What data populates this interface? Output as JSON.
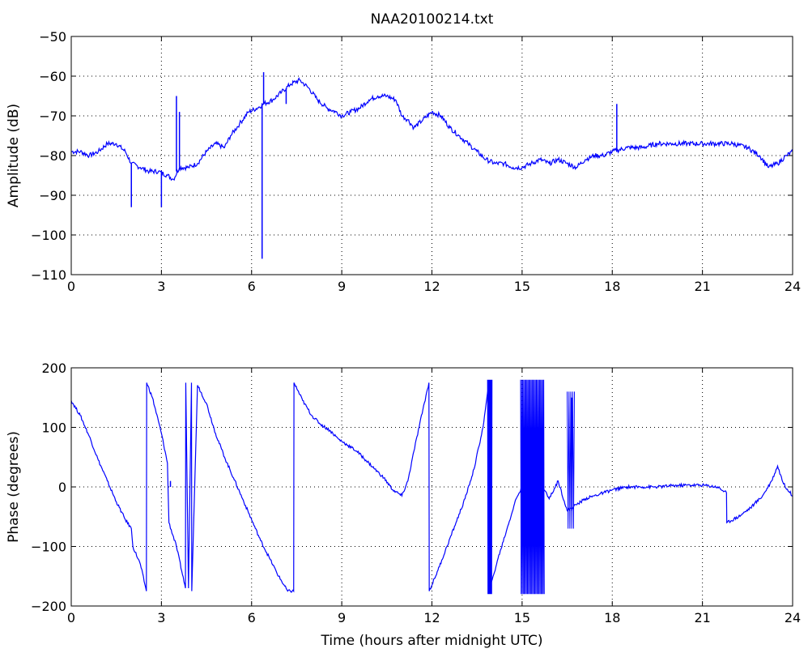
{
  "chart_data": [
    {
      "type": "line",
      "title": "NAA20100214.txt",
      "xlabel": "",
      "ylabel": "Amplitude (dB)",
      "xlim": [
        0,
        24
      ],
      "ylim": [
        -110,
        -50
      ],
      "xticks": [
        0,
        3,
        6,
        9,
        12,
        15,
        18,
        21,
        24
      ],
      "yticks": [
        -110,
        -100,
        -90,
        -80,
        -70,
        -60,
        -50
      ],
      "grid": true,
      "color": "#0000ff",
      "series": [
        {
          "x": [
            0,
            0.3,
            0.6,
            0.9,
            1.2,
            1.5,
            1.8,
            2.0,
            2.3,
            2.6,
            2.9,
            3.2,
            3.4,
            3.6,
            3.9,
            4.2,
            4.5,
            4.8,
            5.1,
            5.3,
            5.6,
            5.9,
            6.2,
            6.4,
            6.7,
            7.0,
            7.3,
            7.6,
            7.9,
            8.2,
            8.5,
            8.8,
            9.0,
            9.3,
            9.6,
            9.9,
            10.2,
            10.5,
            10.8,
            11.0,
            11.2,
            11.4,
            11.7,
            12.0,
            12.3,
            12.6,
            12.9,
            13.2,
            13.5,
            13.8,
            14.1,
            14.4,
            14.7,
            15.0,
            15.3,
            15.6,
            15.9,
            16.2,
            16.5,
            16.8,
            17.1,
            17.4,
            17.7,
            18.0,
            18.5,
            19.0,
            19.5,
            20.0,
            20.5,
            21.0,
            21.5,
            22.0,
            22.5,
            22.9,
            23.2,
            23.5,
            23.8,
            24.0
          ],
          "y": [
            -79,
            -79,
            -80,
            -79,
            -77,
            -77,
            -79,
            -82,
            -83,
            -84,
            -84,
            -85,
            -86,
            -83,
            -83,
            -82,
            -79,
            -77,
            -78,
            -75,
            -72,
            -69,
            -68,
            -67,
            -66,
            -64,
            -62,
            -61,
            -63,
            -66,
            -68,
            -69,
            -70,
            -69,
            -68,
            -66,
            -65,
            -65,
            -66,
            -70,
            -71,
            -73,
            -71,
            -69,
            -70,
            -73,
            -75,
            -77,
            -79,
            -81,
            -82,
            -82,
            -83,
            -83,
            -82,
            -81,
            -82,
            -81,
            -82,
            -83,
            -81,
            -80,
            -80,
            -79,
            -78,
            -78,
            -77,
            -77,
            -77,
            -77,
            -77,
            -77,
            -78,
            -80,
            -83,
            -82,
            -80,
            -79
          ]
        }
      ],
      "spikes": [
        {
          "x": 2.0,
          "y_from": -82,
          "y_to": -93
        },
        {
          "x": 3.0,
          "y_from": -84,
          "y_to": -93
        },
        {
          "x": 3.5,
          "y_from": -84,
          "y_to": -65
        },
        {
          "x": 3.6,
          "y_from": -83,
          "y_to": -69
        },
        {
          "x": 6.35,
          "y_from": -67,
          "y_to": -106
        },
        {
          "x": 6.4,
          "y_from": -67,
          "y_to": -59
        },
        {
          "x": 7.15,
          "y_from": -63,
          "y_to": -67
        },
        {
          "x": 18.15,
          "y_from": -79,
          "y_to": -67
        }
      ]
    },
    {
      "type": "line",
      "title": "",
      "xlabel": "Time (hours after midnight UTC)",
      "ylabel": "Phase (degrees)",
      "xlim": [
        0,
        24
      ],
      "ylim": [
        -200,
        200
      ],
      "xticks": [
        0,
        3,
        6,
        9,
        12,
        15,
        18,
        21,
        24
      ],
      "yticks": [
        -200,
        -100,
        0,
        100,
        200
      ],
      "grid": true,
      "color": "#0000ff",
      "series": [
        {
          "x": [
            0,
            0.3,
            0.6,
            0.9,
            1.2,
            1.5,
            1.8,
            2.0,
            2.05,
            2.3,
            2.5,
            2.51,
            2.7,
            3.0,
            3.2,
            3.25,
            3.5,
            3.8,
            3.81,
            3.9,
            4.0,
            4.01,
            4.2,
            4.21,
            4.5,
            4.8,
            5.1,
            5.4,
            5.7,
            6.0,
            6.3,
            6.6,
            6.9,
            7.2,
            7.4,
            7.41,
            7.7,
            8.0,
            8.3,
            8.6,
            8.9,
            9.2,
            9.5,
            9.8,
            10.1,
            10.4,
            10.7,
            11.0,
            11.2,
            11.4,
            11.7,
            11.9,
            11.91,
            12.2,
            12.5,
            12.8,
            13.1,
            13.4,
            13.7,
            13.9,
            13.91,
            14.2,
            14.5,
            14.8,
            15.0,
            15.3,
            15.6,
            15.9,
            16.2,
            16.5,
            16.8,
            17.1,
            17.4,
            17.7,
            18.0,
            18.5,
            19.0,
            19.5,
            20.0,
            20.5,
            21.0,
            21.5,
            21.8,
            21.81,
            22.2,
            22.6,
            23.0,
            23.3,
            23.5,
            23.7,
            24.0
          ],
          "y": [
            145,
            120,
            85,
            45,
            10,
            -25,
            -55,
            -70,
            -100,
            -130,
            -175,
            175,
            150,
            90,
            40,
            -60,
            -100,
            -170,
            175,
            -170,
            175,
            -175,
            170,
            170,
            140,
            90,
            50,
            15,
            -20,
            -55,
            -90,
            -120,
            -150,
            -175,
            -175,
            175,
            145,
            120,
            105,
            95,
            80,
            70,
            60,
            45,
            30,
            15,
            -5,
            -15,
            10,
            60,
            130,
            175,
            -175,
            -140,
            -100,
            -60,
            -20,
            30,
            100,
            175,
            -175,
            -120,
            -70,
            -20,
            0,
            -30,
            10,
            -20,
            10,
            -40,
            -30,
            -20,
            -15,
            -10,
            -5,
            0,
            0,
            0,
            2,
            3,
            3,
            0,
            -10,
            -60,
            -50,
            -35,
            -15,
            10,
            35,
            5,
            -15
          ]
        }
      ],
      "oscillation_bands": [
        {
          "x_start": 13.85,
          "x_end": 14.0,
          "y_min": -180,
          "y_max": 180,
          "period": 0.025
        },
        {
          "x_start": 14.95,
          "x_end": 15.75,
          "y_min": -180,
          "y_max": 180,
          "period": 0.035
        },
        {
          "x_start": 16.5,
          "x_end": 16.75,
          "y_min": -70,
          "y_max": 160,
          "period": 0.06
        }
      ],
      "spikes": [
        {
          "x": 3.3,
          "y_from": 0,
          "y_to": 10
        },
        {
          "x": 16.65,
          "y_from": -40,
          "y_to": 150
        }
      ]
    }
  ]
}
